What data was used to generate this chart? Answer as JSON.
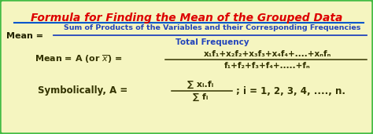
{
  "title": "Formula for Finding the Mean of the Grouped Data",
  "title_color": "#dd0000",
  "title_underline_color": "#0055cc",
  "bg_color": "#f5f5c0",
  "border_color": "#44bb44",
  "numerator_text": "Sum of Products of the Variables and their Corresponding Frequencies",
  "denominator_text": "Total Frequency",
  "fraction_color": "#2244bb",
  "mean_label_color": "#222200",
  "line2_left": "Mean = A (or ",
  "line2_right": ") = ",
  "line2_num": "x₁f₁+x₂f₂+x₃f₃+x₄f₄+....+xₙfₙ",
  "line2_den": "f₁+f₂+f₃+f₄+.....+fₙ",
  "line2_color": "#333300",
  "line3_left": "Symbolically, A = ",
  "line3_num": "∑ xᵢ.fᵢ",
  "line3_den": "∑ fᵢ",
  "line3_right": "; i = 1, 2, 3, 4, ...., n.",
  "line3_color": "#333300",
  "mean_eq_color": "#222200"
}
